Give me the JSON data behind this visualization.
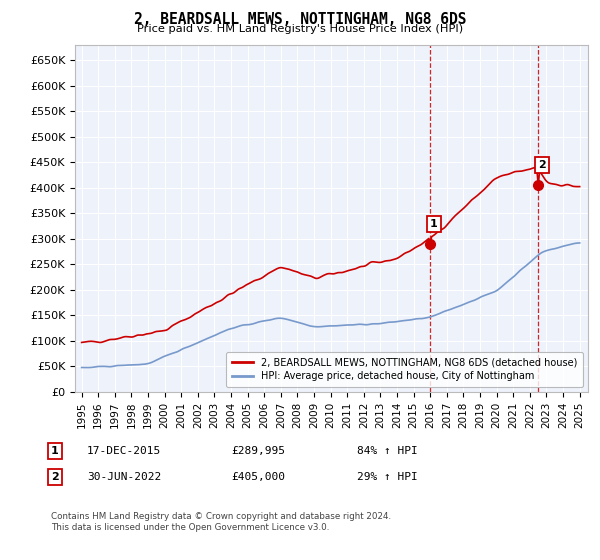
{
  "title": "2, BEARDSALL MEWS, NOTTINGHAM, NG8 6DS",
  "subtitle": "Price paid vs. HM Land Registry's House Price Index (HPI)",
  "ylim": [
    0,
    680000
  ],
  "yticks": [
    0,
    50000,
    100000,
    150000,
    200000,
    250000,
    300000,
    350000,
    400000,
    450000,
    500000,
    550000,
    600000,
    650000
  ],
  "xlim_start": 1994.6,
  "xlim_end": 2025.5,
  "red_color": "#cc0000",
  "blue_color": "#7799cc",
  "point1_x": 2015.96,
  "point1_y": 289995,
  "point2_x": 2022.5,
  "point2_y": 405000,
  "legend_line1": "2, BEARDSALL MEWS, NOTTINGHAM, NG8 6DS (detached house)",
  "legend_line2": "HPI: Average price, detached house, City of Nottingham",
  "footer": "Contains HM Land Registry data © Crown copyright and database right 2024.\nThis data is licensed under the Open Government Licence v3.0.",
  "background_plot": "#eef2fa",
  "background_fig": "#ffffff"
}
